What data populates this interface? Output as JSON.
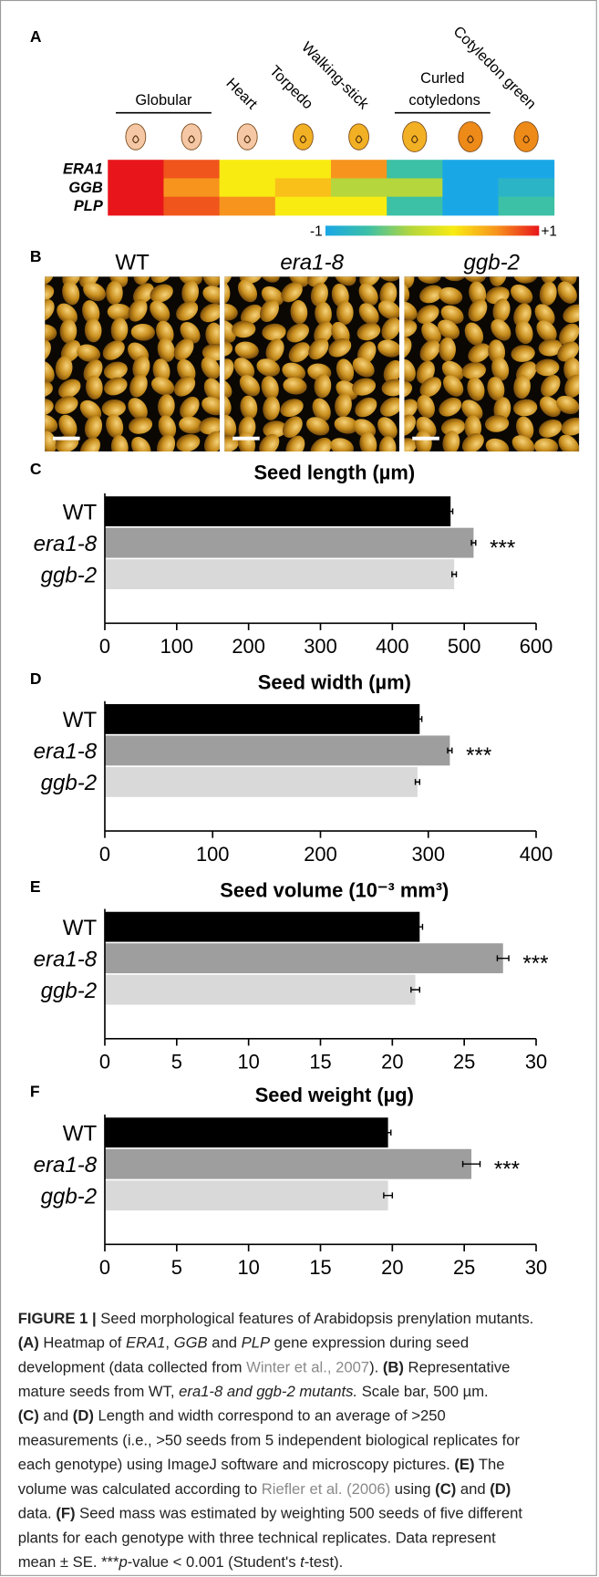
{
  "chart_data": [
    {
      "type": "heatmap",
      "panel_label": "A",
      "columns": [
        "Globular",
        null,
        "Heart",
        "Torpedo",
        "Walking-stick",
        "Curled cotyledons",
        null,
        "Cotyledon green"
      ],
      "rows": [
        {
          "name": "ERA1",
          "values": [
            1,
            0.8,
            0.2,
            0.2,
            0.6,
            -0.6,
            -1,
            -1
          ]
        },
        {
          "name": "GGB",
          "values": [
            1,
            0.6,
            0.2,
            0.4,
            -0.2,
            -0.2,
            -1,
            -0.8
          ]
        },
        {
          "name": "PLP",
          "values": [
            1,
            0.8,
            0.6,
            0.2,
            0.2,
            -0.6,
            -1,
            -0.6
          ]
        }
      ],
      "colorscale": [
        "#1aa7e6",
        "#3cc0a6",
        "#b5d63c",
        "#f8eb12",
        "#f7941d",
        "#e8161b"
      ],
      "clim": [
        -1,
        1
      ],
      "cticks": [
        -1,
        {
          "value": 1,
          "label": "+1"
        }
      ]
    },
    {
      "type": "bar",
      "orientation": "horizontal",
      "panel_label": "C",
      "title": "Seed length (µm)",
      "categories": [
        "WT",
        "era1-8",
        "ggb-2"
      ],
      "italic_categories": [
        false,
        true,
        true
      ],
      "values": [
        481,
        513,
        486
      ],
      "errors": [
        3,
        3,
        3
      ],
      "colors": [
        "#000000",
        "#9e9e9e",
        "#d9d9d9"
      ],
      "significance": [
        null,
        "***",
        null
      ],
      "xlim": [
        0,
        600
      ],
      "xticks": [
        0,
        100,
        200,
        300,
        400,
        500,
        600
      ]
    },
    {
      "type": "bar",
      "orientation": "horizontal",
      "panel_label": "D",
      "title": "Seed width (µm)",
      "categories": [
        "WT",
        "era1-8",
        "ggb-2"
      ],
      "italic_categories": [
        false,
        true,
        true
      ],
      "values": [
        292,
        320,
        290
      ],
      "errors": [
        2,
        2,
        2
      ],
      "colors": [
        "#000000",
        "#9e9e9e",
        "#d9d9d9"
      ],
      "significance": [
        null,
        "***",
        null
      ],
      "xlim": [
        0,
        400
      ],
      "xticks": [
        0,
        100,
        200,
        300,
        400
      ]
    },
    {
      "type": "bar",
      "orientation": "horizontal",
      "panel_label": "E",
      "title": "Seed volume (10⁻³ mm³)",
      "categories": [
        "WT",
        "era1-8",
        "ggb-2"
      ],
      "italic_categories": [
        false,
        true,
        true
      ],
      "values": [
        21.9,
        27.7,
        21.6
      ],
      "errors": [
        0.2,
        0.4,
        0.3
      ],
      "colors": [
        "#000000",
        "#9e9e9e",
        "#d9d9d9"
      ],
      "significance": [
        null,
        "***",
        null
      ],
      "xlim": [
        0,
        30
      ],
      "xticks": [
        0,
        5,
        10,
        15,
        20,
        25,
        30
      ]
    },
    {
      "type": "bar",
      "orientation": "horizontal",
      "panel_label": "F",
      "title": "Seed weight (µg)",
      "categories": [
        "WT",
        "era1-8",
        "ggb-2"
      ],
      "italic_categories": [
        false,
        true,
        true
      ],
      "values": [
        19.7,
        25.5,
        19.7
      ],
      "errors": [
        0.2,
        0.6,
        0.3
      ],
      "colors": [
        "#000000",
        "#9e9e9e",
        "#d9d9d9"
      ],
      "significance": [
        null,
        "***",
        null
      ],
      "xlim": [
        0,
        30
      ],
      "xticks": [
        0,
        5,
        10,
        15,
        20,
        25,
        30
      ]
    }
  ],
  "photos": {
    "panel_label": "B",
    "labels": [
      "WT",
      "era1-8",
      "ggb-2"
    ],
    "italic": [
      false,
      true,
      true
    ]
  },
  "caption": [
    [
      {
        "text": "FIGURE 1 | ",
        "bold": true
      },
      {
        "text": "Seed morphological features of Arabidopsis prenylation mutants."
      }
    ],
    [
      {
        "text": "(A)",
        "bold": true
      },
      {
        "text": " Heatmap of "
      },
      {
        "text": "ERA1",
        "italic": true
      },
      {
        "text": ", "
      },
      {
        "text": "GGB",
        "italic": true
      },
      {
        "text": " and "
      },
      {
        "text": "PLP",
        "italic": true
      },
      {
        "text": " gene expression during seed"
      }
    ],
    [
      {
        "text": "development (data collected from "
      },
      {
        "text": "Winter et al., 2007",
        "link": true
      },
      {
        "text": "). "
      },
      {
        "text": "(B)",
        "bold": true
      },
      {
        "text": " Representative"
      }
    ],
    [
      {
        "text": "mature seeds from WT, "
      },
      {
        "text": "era1-8 and ggb-2 mutants.",
        "italic": true
      },
      {
        "text": " Scale bar, 500 µm."
      }
    ],
    [
      {
        "text": "(C)",
        "bold": true
      },
      {
        "text": " and "
      },
      {
        "text": "(D)",
        "bold": true
      },
      {
        "text": " Length and width correspond to an average of >250"
      }
    ],
    [
      {
        "text": "measurements (i.e., >50 seeds from 5 independent biological replicates for"
      }
    ],
    [
      {
        "text": "each genotype) using ImageJ software and microscopy pictures. "
      },
      {
        "text": "(E)",
        "bold": true
      },
      {
        "text": " The"
      }
    ],
    [
      {
        "text": "volume was calculated according to "
      },
      {
        "text": "Riefler et al. (2006)",
        "link": true
      },
      {
        "text": " using "
      },
      {
        "text": "(C)",
        "bold": true
      },
      {
        "text": " and "
      },
      {
        "text": "(D)",
        "bold": true
      }
    ],
    [
      {
        "text": "data. "
      },
      {
        "text": "(F)",
        "bold": true
      },
      {
        "text": " Seed mass was estimated by weighting 500 seeds of five different"
      }
    ],
    [
      {
        "text": "plants for each genotype with three technical replicates. Data represent"
      }
    ],
    [
      {
        "text": "mean ± SE. ***"
      },
      {
        "text": "p",
        "italic": true
      },
      {
        "text": "-value < 0.001 (Student's "
      },
      {
        "text": "t",
        "italic": true
      },
      {
        "text": "-test)."
      }
    ]
  ]
}
